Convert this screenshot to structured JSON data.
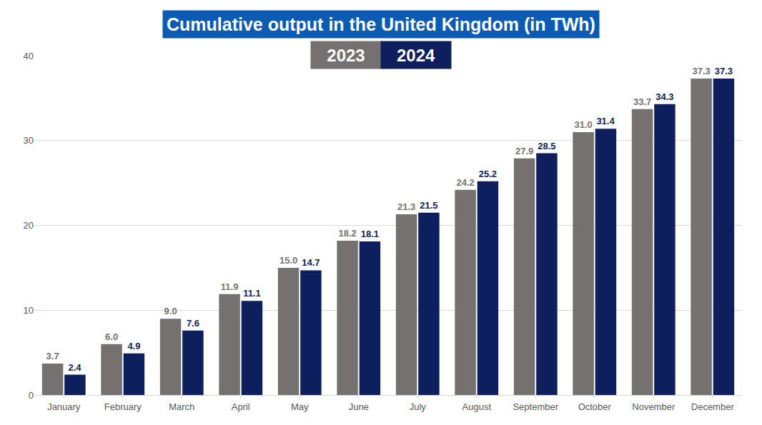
{
  "chart_data": {
    "type": "bar",
    "title": "Cumulative output in the United Kingdom (in TWh)",
    "categories": [
      "January",
      "February",
      "March",
      "April",
      "May",
      "June",
      "July",
      "August",
      "September",
      "October",
      "November",
      "December"
    ],
    "series": [
      {
        "name": "2023",
        "color": "#767171",
        "values": [
          3.7,
          6.0,
          9.0,
          11.9,
          15.0,
          18.2,
          21.3,
          24.2,
          27.9,
          31.0,
          33.7,
          37.3
        ],
        "value_labels": [
          "3.7",
          "6.0",
          "9.0",
          "11.9",
          "15.0",
          "18.2",
          "21.3",
          "24.2",
          "27.9",
          "31.0",
          "33.7",
          "37.3"
        ]
      },
      {
        "name": "2024",
        "color": "#0d1f5c",
        "values": [
          2.4,
          4.9,
          7.6,
          11.1,
          14.7,
          18.1,
          21.5,
          25.2,
          28.5,
          31.4,
          34.3,
          37.3
        ],
        "value_labels": [
          "2.4",
          "4.9",
          "7.6",
          "11.1",
          "14.7",
          "18.1",
          "21.5",
          "25.2",
          "28.5",
          "31.4",
          "34.3",
          "37.3"
        ]
      }
    ],
    "ylim": [
      0,
      40
    ],
    "yticks": [
      0,
      10,
      20,
      30,
      40
    ],
    "grid": true,
    "legend": "top",
    "data_labels": true
  }
}
